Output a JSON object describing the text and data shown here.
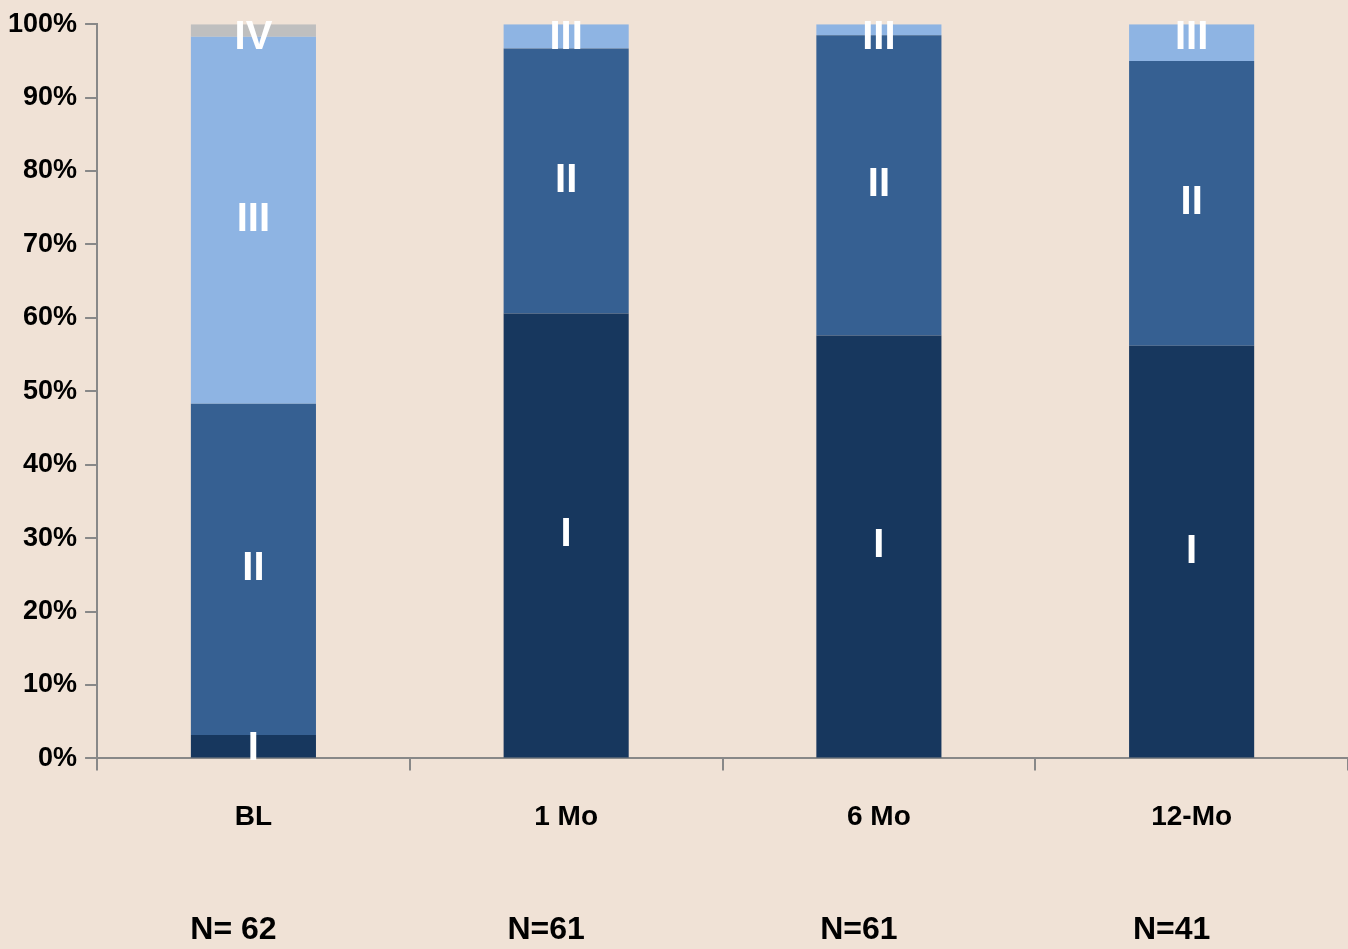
{
  "chart_data": {
    "type": "bar",
    "stacked": true,
    "categories": [
      "BL",
      "1 Mo",
      "6 Mo",
      "12-Mo"
    ],
    "series": [
      {
        "name": "I",
        "color": "#17375e",
        "values": [
          3.2,
          60.6,
          57.6,
          56.2
        ]
      },
      {
        "name": "II",
        "color": "#366092",
        "values": [
          45.1,
          36.1,
          40.9,
          38.8
        ]
      },
      {
        "name": "III",
        "color": "#8eb4e3",
        "values": [
          50.0,
          3.3,
          1.5,
          5.0
        ]
      },
      {
        "name": "IV",
        "color": "#bfbfbf",
        "values": [
          1.7,
          null,
          null,
          null
        ]
      }
    ],
    "ylim": [
      0,
      100
    ],
    "yticks": [
      {
        "value": 0,
        "label": "0%"
      },
      {
        "value": 10,
        "label": "10%"
      },
      {
        "value": 20,
        "label": "20%"
      },
      {
        "value": 30,
        "label": "30%"
      },
      {
        "value": 40,
        "label": "40%"
      },
      {
        "value": 50,
        "label": "50%"
      },
      {
        "value": 60,
        "label": "60%"
      },
      {
        "value": 70,
        "label": "70%"
      },
      {
        "value": 80,
        "label": "80%"
      },
      {
        "value": 90,
        "label": "90%"
      },
      {
        "value": 100,
        "label": "100%"
      }
    ],
    "grid": false,
    "legend": false,
    "annotations": [
      "N= 62",
      "N=61",
      "N=61",
      "N=41"
    ]
  }
}
